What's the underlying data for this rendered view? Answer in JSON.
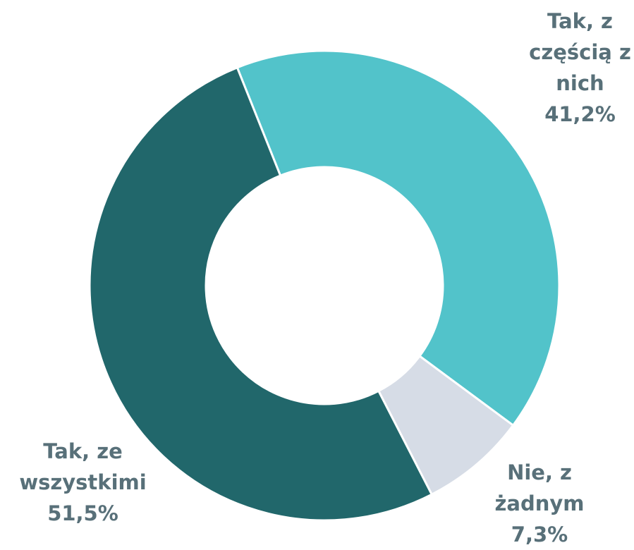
{
  "chart_data": {
    "type": "donut",
    "categories": [
      "Tak, z częścią z nich",
      "Nie, z żadnym",
      "Tak, ze wszystkimi"
    ],
    "values": [
      41.2,
      7.3,
      51.5
    ],
    "value_labels": [
      "41,2%",
      "7,3%",
      "51,5%"
    ],
    "colors": [
      "#52c3ca",
      "#d6dce6",
      "#21676b"
    ]
  }
}
